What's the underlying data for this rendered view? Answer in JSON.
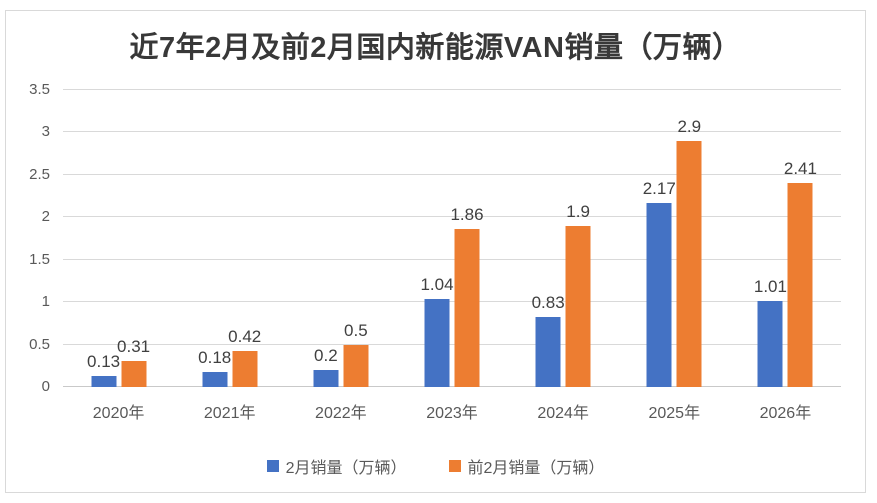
{
  "chart_data": {
    "type": "bar",
    "title": "近7年2月及前2月国内新能源VAN销量（万辆）",
    "categories": [
      "2020年",
      "2021年",
      "2022年",
      "2023年",
      "2024年",
      "2025年",
      "2026年"
    ],
    "series": [
      {
        "name": "2月销量（万辆）",
        "color": "#4472C4",
        "values": [
          0.13,
          0.18,
          0.2,
          1.04,
          0.83,
          2.17,
          1.01
        ],
        "labels": [
          "0.13",
          "0.18",
          "0.2",
          "1.04",
          "0.83",
          "2.17",
          "1.01"
        ]
      },
      {
        "name": "前2月销量（万辆）",
        "color": "#ED7D31",
        "values": [
          0.31,
          0.42,
          0.5,
          1.86,
          1.9,
          2.9,
          2.41
        ],
        "labels": [
          "0.31",
          "0.42",
          "0.5",
          "1.86",
          "1.9",
          "2.9",
          "2.41"
        ]
      }
    ],
    "y_axis": {
      "tick_labels": [
        "0",
        "0.5",
        "1",
        "1.5",
        "2",
        "2.5",
        "3",
        "3.5"
      ],
      "tick_values": [
        0,
        0.5,
        1,
        1.5,
        2,
        2.5,
        3,
        3.5
      ],
      "min": 0,
      "max": 3.5
    },
    "grid": true,
    "legend_position": "bottom",
    "colors": {
      "gridline": "#d9d9d9",
      "axis_text": "#595959",
      "data_label": "#404040",
      "title_text": "#383838",
      "chart_border": "#d9d9d9",
      "background": "#ffffff"
    }
  }
}
